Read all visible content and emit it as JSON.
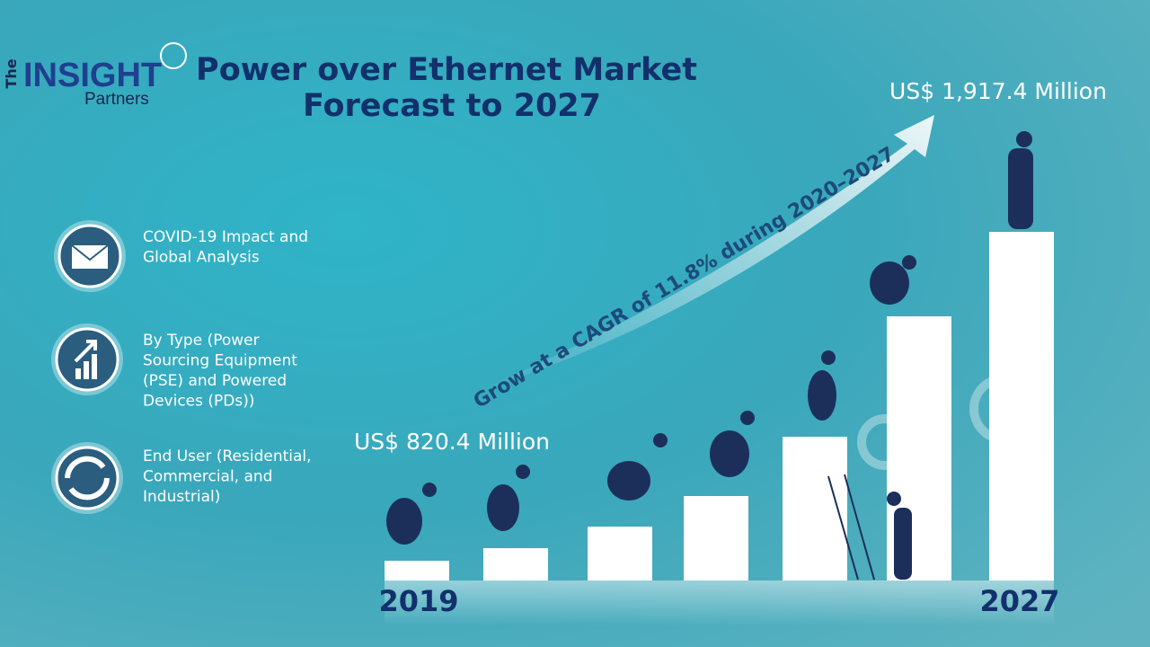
{
  "logo": {
    "the": "The",
    "insight": "INSIGHT",
    "partners": "Partners"
  },
  "title": [
    "Power over Ethernet Market",
    "Forecast to 2027"
  ],
  "segments": [
    {
      "lines": [
        "COVID-19 Impact and",
        "Global Analysis"
      ]
    },
    {
      "lines": [
        "By Type (Power",
        "Sourcing Equipment",
        "(PSE) and Powered",
        "Devices (PDs))"
      ]
    },
    {
      "lines": [
        "End User (Residential,",
        "Commercial, and",
        "Industrial)"
      ]
    }
  ],
  "start_value": "US$ 820.4 Million",
  "end_value": "US$ 1,917.4 Million",
  "cagr": "Grow at a CAGR of 11.8% during 2020–2027",
  "start_year": "2019",
  "end_year": "2027"
}
